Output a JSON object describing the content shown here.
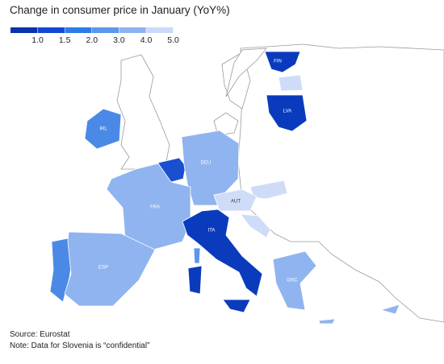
{
  "title": "Change in consumer price in January (YoY%)",
  "legend": {
    "colors": [
      "#0a33ad",
      "#1248d4",
      "#2e7be6",
      "#5c97ec",
      "#8eb3f1",
      "#cbdaf8"
    ],
    "ticks": [
      {
        "value": 1,
        "label": "1.0"
      },
      {
        "value": 1.5,
        "label": "1.5"
      },
      {
        "value": 2,
        "label": "2.0"
      },
      {
        "value": 3,
        "label": "3.0"
      },
      {
        "value": 4,
        "label": "4.0"
      },
      {
        "value": 5,
        "label": "5.0"
      }
    ]
  },
  "regions": [
    {
      "label": "FIN",
      "color": "#0a3bbd"
    },
    {
      "label": "LVA",
      "color": "#0a3bbd"
    },
    {
      "label": "IRL",
      "color": "#4a8ae6"
    },
    {
      "label": "DEU",
      "color": "#8fb4f0"
    },
    {
      "label": "FRA",
      "color": "#8fb4f0"
    },
    {
      "label": "AUT",
      "color": "#cfdcf8"
    },
    {
      "label": "ITA",
      "color": "#0a3bbd"
    },
    {
      "label": "ESP",
      "color": "#8fb4f0"
    },
    {
      "label": "GRC",
      "color": "#8fb4f0"
    }
  ],
  "source": "Source: Eurostat",
  "note": "Note: Data for Slovenia is “confidential”"
}
